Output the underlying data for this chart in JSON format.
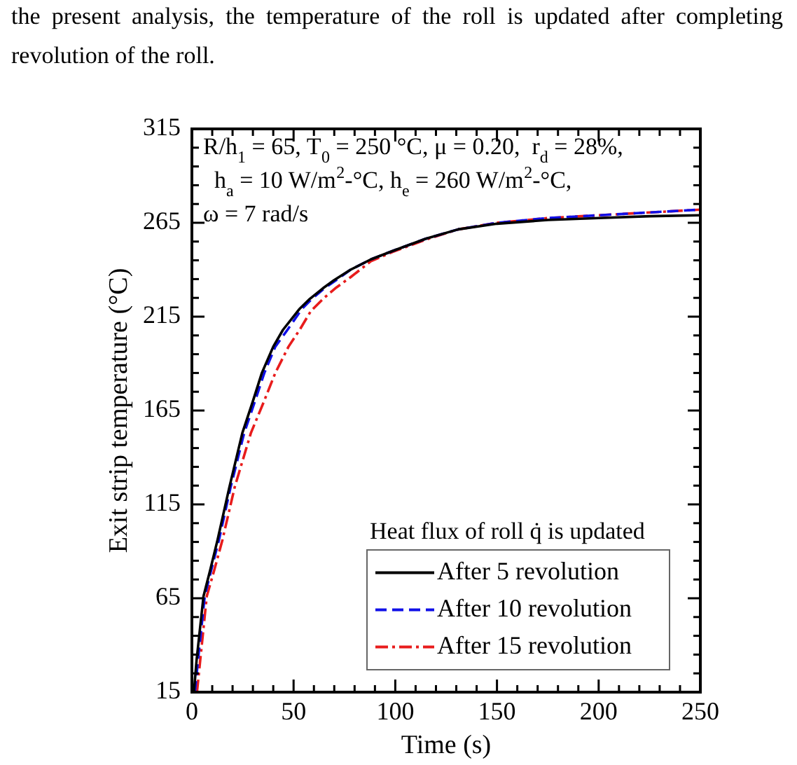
{
  "chart_data": {
    "type": "line",
    "annotations": [
      "the present analysis, the temperature of the roll is updated after completing revolution of the roll.",
      "R/h$_{1}$ = 65, T$_{0}$ = 250 °C, μ = 0.20,  r$_{d}$ = 28%,",
      "h$_{a}$ = 10 W/m$^{2}$-°C, h$_{e}$ = 260 W/m$^{2}$-°C,",
      "ω = 7 rad/s"
    ],
    "xlabel": "Time (s)",
    "ylabel": "Exit strip temperature (°C)",
    "legend_title": "Heat flux of roll q̇ is updated",
    "xlim": [
      0,
      250
    ],
    "ylim": [
      15,
      315
    ],
    "xticks": [
      0,
      {
        "value": 10,
        "label": null
      },
      {
        "value": 20,
        "label": null
      },
      {
        "value": 30,
        "label": null
      },
      {
        "value": 40,
        "label": null
      },
      50,
      {
        "value": 60,
        "label": null
      },
      {
        "value": 70,
        "label": null
      },
      {
        "value": 80,
        "label": null
      },
      {
        "value": 90,
        "label": null
      },
      100,
      {
        "value": 110,
        "label": null
      },
      {
        "value": 120,
        "label": null
      },
      {
        "value": 130,
        "label": null
      },
      {
        "value": 140,
        "label": null
      },
      150,
      {
        "value": 160,
        "label": null
      },
      {
        "value": 170,
        "label": null
      },
      {
        "value": 180,
        "label": null
      },
      {
        "value": 190,
        "label": null
      },
      200,
      {
        "value": 210,
        "label": null
      },
      {
        "value": 220,
        "label": null
      },
      {
        "value": 230,
        "label": null
      },
      {
        "value": 240,
        "label": null
      },
      250
    ],
    "yticks": [
      15,
      {
        "value": 25,
        "label": null
      },
      {
        "value": 35,
        "label": null
      },
      {
        "value": 45,
        "label": null
      },
      {
        "value": 55,
        "label": null
      },
      65,
      {
        "value": 75,
        "label": null
      },
      {
        "value": 85,
        "label": null
      },
      {
        "value": 95,
        "label": null
      },
      {
        "value": 105,
        "label": null
      },
      115,
      {
        "value": 125,
        "label": null
      },
      {
        "value": 135,
        "label": null
      },
      {
        "value": 145,
        "label": null
      },
      {
        "value": 155,
        "label": null
      },
      165,
      {
        "value": 175,
        "label": null
      },
      {
        "value": 185,
        "label": null
      },
      {
        "value": 195,
        "label": null
      },
      {
        "value": 205,
        "label": null
      },
      215,
      {
        "value": 225,
        "label": null
      },
      {
        "value": 235,
        "label": null
      },
      {
        "value": 245,
        "label": null
      },
      {
        "value": 255,
        "label": null
      },
      265,
      {
        "value": 275,
        "label": null
      },
      {
        "value": 285,
        "label": null
      },
      {
        "value": 295,
        "label": null
      },
      {
        "value": 305,
        "label": null
      },
      315
    ],
    "grid": false,
    "legend": "bottom right",
    "marker": "none",
    "series": [
      {
        "name": "After 5 revolution",
        "color": "#000000",
        "line_style": "solid",
        "x": [
          1,
          2.3,
          5.7,
          9,
          12.6,
          18.4,
          24.8,
          30,
          34.4,
          40,
          44.8,
          52.8,
          58,
          64.3,
          70,
          78,
          88,
          98.7,
          115,
          131,
          150,
          175,
          200,
          225,
          250
        ],
        "values": [
          15,
          32,
          66,
          80,
          96,
          124,
          153,
          170,
          185,
          199,
          208,
          219,
          224.5,
          230,
          234.5,
          240,
          245.5,
          250,
          256.5,
          261.5,
          264.5,
          266.5,
          267.5,
          268.5,
          269
        ]
      },
      {
        "name": "After 10 revolution",
        "color": "#1010e8",
        "line_style": "dashed",
        "x": [
          1.5,
          3,
          6.3,
          9.5,
          13.3,
          19,
          25.7,
          31,
          35.6,
          41,
          47,
          54,
          59,
          65,
          71,
          78,
          88,
          98.7,
          115,
          131,
          150,
          175,
          200,
          225,
          250
        ],
        "values": [
          15,
          32,
          66,
          80,
          96,
          124,
          153,
          170,
          185,
          199,
          208,
          219,
          224.5,
          230,
          234.5,
          240,
          245.5,
          250,
          256.5,
          261.5,
          265,
          267.5,
          269,
          270.5,
          272
        ]
      },
      {
        "name": "After 15 revolution",
        "color": "#e81c1c",
        "line_style": "dashdot",
        "x": [
          2.5,
          4.1,
          7.3,
          11,
          15,
          21,
          29,
          35.5,
          41,
          47.5,
          53,
          58.5,
          65,
          71,
          78,
          88,
          98.7,
          115,
          131,
          150,
          175,
          200,
          225,
          250
        ],
        "values": [
          15,
          32,
          66,
          80,
          96,
          124,
          153,
          170,
          185,
          199,
          208,
          218,
          225,
          230.5,
          236,
          244.5,
          249.5,
          256,
          261.5,
          265,
          267.5,
          269,
          270.5,
          272
        ]
      }
    ]
  }
}
